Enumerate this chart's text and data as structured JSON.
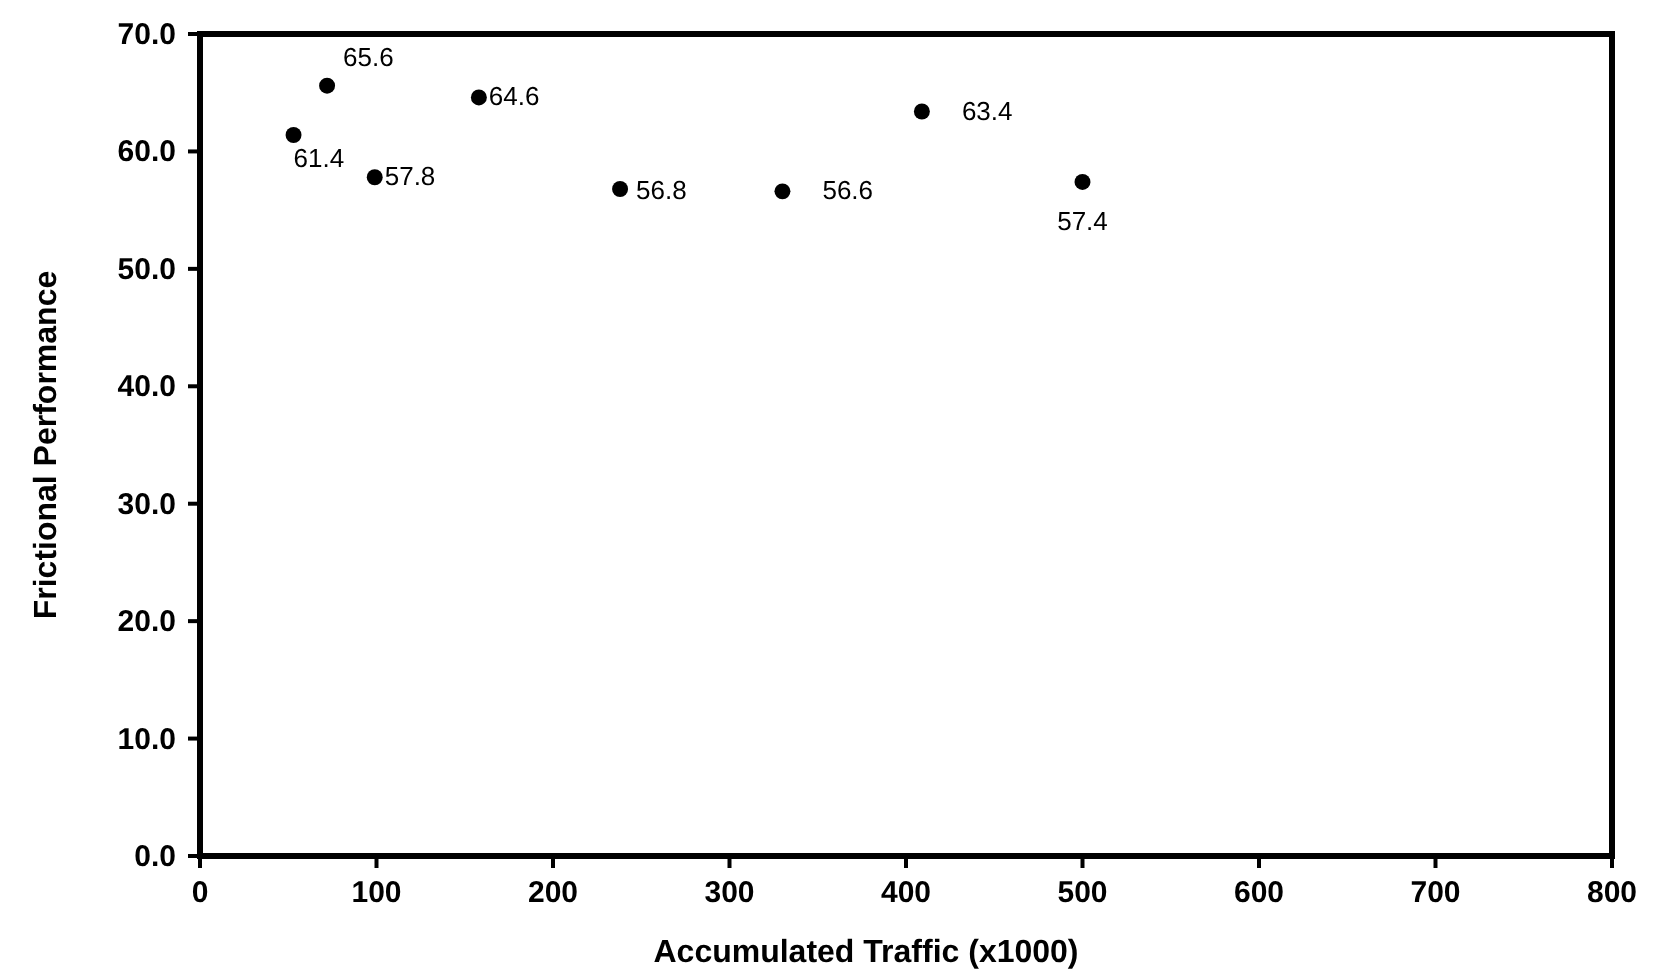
{
  "chart_data": {
    "type": "scatter",
    "xlabel": "Accumulated Traffic (x1000)",
    "ylabel": "Frictional Performance",
    "x": [
      53,
      72,
      99,
      158,
      238,
      330,
      409,
      500
    ],
    "series": [
      {
        "color": "#000000",
        "values": [
          61.4,
          65.6,
          57.8,
          64.6,
          56.8,
          56.6,
          63.4,
          57.4
        ]
      }
    ],
    "data_labels": true,
    "marker": "circle",
    "grid": false,
    "xlim": [
      0,
      800
    ],
    "xticks": [
      0,
      100,
      200,
      300,
      400,
      500,
      600,
      700,
      800
    ],
    "ylim": [
      0,
      70
    ],
    "yticks": [
      {
        "value": 0,
        "label": "0.0"
      },
      {
        "value": 10,
        "label": "10.0"
      },
      {
        "value": 20,
        "label": "20.0"
      },
      {
        "value": 30,
        "label": "30.0"
      },
      {
        "value": 40,
        "label": "40.0"
      },
      {
        "value": 50,
        "label": "50.0"
      },
      {
        "value": 60,
        "label": "60.0"
      },
      {
        "value": 70,
        "label": "70.0"
      }
    ]
  }
}
